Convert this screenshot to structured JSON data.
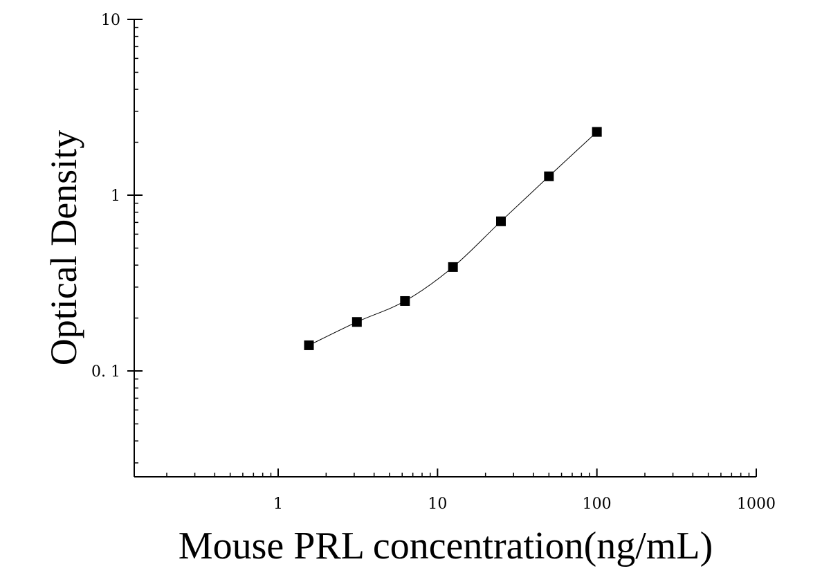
{
  "chart_data": {
    "type": "scatter",
    "xlabel": "Mouse PRL concentration(ng/mL)",
    "ylabel": "Optical Density",
    "x_scale": "log",
    "y_scale": "log",
    "xlim": [
      0.125,
      1000
    ],
    "ylim": [
      0.025,
      10
    ],
    "x_ticks": [
      1,
      10,
      100,
      1000
    ],
    "x_tick_labels": [
      "1",
      "10",
      "100",
      "1000"
    ],
    "y_ticks": [
      0.1,
      1,
      10
    ],
    "y_tick_labels": [
      "0. 1",
      "1",
      "10"
    ],
    "grid": false,
    "legend": "none",
    "marker": "square",
    "marker_color": "#000000",
    "fit_curve": true,
    "series": [
      {
        "x": [
          1.56,
          3.12,
          6.25,
          12.5,
          25,
          50,
          100
        ],
        "y": [
          0.14,
          0.19,
          0.25,
          0.39,
          0.71,
          1.28,
          2.29
        ]
      }
    ]
  }
}
